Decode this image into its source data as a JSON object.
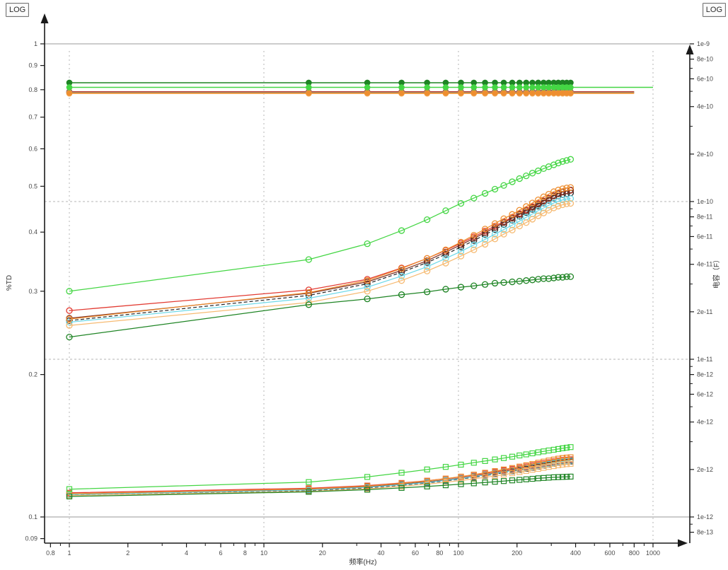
{
  "labels": {
    "log_left": "LOG",
    "log_right": "LOG",
    "x_title": "频率(Hz)",
    "y_left_title": "%TD",
    "y_right_title": "电容（F）"
  },
  "axes": {
    "x": {
      "scale": "log",
      "major_ticks": [
        {
          "f": 0.8,
          "label": "0.8"
        },
        {
          "f": 1,
          "label": "1"
        },
        {
          "f": 2,
          "label": "2"
        },
        {
          "f": 4,
          "label": "4"
        },
        {
          "f": 6,
          "label": "6"
        },
        {
          "f": 8,
          "label": "8"
        },
        {
          "f": 10,
          "label": "10"
        },
        {
          "f": 20,
          "label": "20"
        },
        {
          "f": 40,
          "label": "40"
        },
        {
          "f": 60,
          "label": "60"
        },
        {
          "f": 80,
          "label": "80"
        },
        {
          "f": 100,
          "label": "100"
        },
        {
          "f": 200,
          "label": "200"
        },
        {
          "f": 400,
          "label": "400"
        },
        {
          "f": 600,
          "label": "600"
        },
        {
          "f": 800,
          "label": "800"
        },
        {
          "f": 1000,
          "label": "1000"
        }
      ],
      "minor_ticks": [
        0.9,
        3,
        5,
        7,
        9,
        30,
        50,
        70,
        90,
        300,
        500,
        700,
        900
      ],
      "grid_dashed_at": [
        1,
        10,
        100,
        1000
      ]
    },
    "y_left": {
      "scale": "log",
      "ticks": [
        {
          "v": 1,
          "label": "1"
        },
        {
          "v": 0.9,
          "label": "0.9"
        },
        {
          "v": 0.8,
          "label": "0.8"
        },
        {
          "v": 0.7,
          "label": "0.7"
        },
        {
          "v": 0.6,
          "label": "0.6"
        },
        {
          "v": 0.5,
          "label": "0.5"
        },
        {
          "v": 0.4,
          "label": "0.4"
        },
        {
          "v": 0.3,
          "label": "0.3"
        },
        {
          "v": 0.2,
          "label": "0.2"
        },
        {
          "v": 0.1,
          "label": "0.1"
        },
        {
          "v": 0.09,
          "label": "0.09"
        }
      ],
      "grid_solid_at": [
        1,
        0.1
      ]
    },
    "y_right": {
      "scale": "log",
      "labeled_ticks": [
        {
          "c": 1e-09,
          "label": "1e-9"
        },
        {
          "c": 8e-10,
          "label": "8e-10"
        },
        {
          "c": 6e-10,
          "label": "6e-10"
        },
        {
          "c": 4e-10,
          "label": "4e-10"
        },
        {
          "c": 2e-10,
          "label": "2e-10"
        },
        {
          "c": 1e-10,
          "label": "1e-10"
        },
        {
          "c": 8e-11,
          "label": "8e-11"
        },
        {
          "c": 6e-11,
          "label": "6e-11"
        },
        {
          "c": 4e-11,
          "label": "4e-11"
        },
        {
          "c": 2e-11,
          "label": "2e-11"
        },
        {
          "c": 1e-11,
          "label": "1e-11"
        },
        {
          "c": 8e-12,
          "label": "8e-12"
        },
        {
          "c": 6e-12,
          "label": "6e-12"
        },
        {
          "c": 4e-12,
          "label": "4e-12"
        },
        {
          "c": 2e-12,
          "label": "2e-12"
        },
        {
          "c": 1e-12,
          "label": "1e-12"
        },
        {
          "c": 8e-13,
          "label": "8e-13"
        }
      ],
      "minor_ticks": [
        9e-10,
        7e-10,
        5e-10,
        3e-10,
        9e-11,
        7e-11,
        5e-11,
        3e-11,
        9e-12,
        7e-12,
        5e-12,
        3e-12,
        9e-13
      ],
      "grid_dashed_at": [
        1e-10,
        1e-11
      ]
    }
  },
  "chart_data": {
    "type": "line",
    "title": "",
    "xlabel": "频率(Hz)",
    "ylabel_left": "%TD",
    "ylabel_right": "电容（F）",
    "x_range": [
      0.8,
      1400
    ],
    "y_left_range": [
      0.09,
      1.1
    ],
    "y_right_range": [
      8e-13,
      1.5e-09
    ],
    "frequencies": [
      1,
      17,
      34,
      51,
      69,
      86,
      103,
      120,
      137,
      154,
      171,
      189,
      206,
      223,
      240,
      257,
      274,
      291,
      309,
      326,
      343,
      360,
      377
    ],
    "groups": {
      "capacitance": {
        "axis": "right",
        "marker": "filled-circle",
        "description": "flat curves near 5e-10 F"
      },
      "td_upper": {
        "axis": "left",
        "marker": "open-circle",
        "description": "rising curves 0.24-0.57"
      },
      "td_lower": {
        "axis": "left",
        "marker": "open-square",
        "description": "shallow curves 0.11-0.14"
      }
    },
    "series": [
      {
        "name": "red",
        "color": "#E23B32",
        "dash": null,
        "cap": 4.97e-10,
        "cap_line_end_hz": 800,
        "td_upper": [
          0.273,
          0.302,
          0.318,
          0.336,
          0.352,
          0.366,
          0.379,
          0.391,
          0.402,
          0.412,
          0.421,
          0.43,
          0.438,
          0.446,
          0.453,
          0.46,
          0.466,
          0.472,
          0.478,
          0.483,
          0.487,
          0.489,
          0.49
        ],
        "td_lower": [
          0.1125,
          0.115,
          0.1165,
          0.118,
          0.1193,
          0.1205,
          0.1216,
          0.1227,
          0.1237,
          0.1246,
          0.1255,
          0.1263,
          0.1271,
          0.1279,
          0.1286,
          0.1293,
          0.1299,
          0.1305,
          0.1311,
          0.1316,
          0.132,
          0.1322,
          0.1324
        ]
      },
      {
        "name": "black",
        "color": "#2B2B2B",
        "dash": "5,3",
        "cap": 4.92e-10,
        "cap_line_end_hz": 800,
        "td_upper": [
          0.26,
          0.294,
          0.311,
          0.329,
          0.345,
          0.359,
          0.372,
          0.384,
          0.395,
          0.405,
          0.415,
          0.424,
          0.432,
          0.44,
          0.447,
          0.454,
          0.461,
          0.467,
          0.472,
          0.477,
          0.48,
          0.482,
          0.484
        ],
        "td_lower": [
          0.1112,
          0.1137,
          0.1152,
          0.1167,
          0.118,
          0.1192,
          0.1203,
          0.1213,
          0.1223,
          0.1232,
          0.1241,
          0.1249,
          0.1257,
          0.1264,
          0.1271,
          0.1278,
          0.1284,
          0.129,
          0.1296,
          0.1301,
          0.1305,
          0.1308,
          0.131
        ]
      },
      {
        "name": "maroon",
        "color": "#803122",
        "dash": null,
        "cap": 4.94e-10,
        "cap_line_end_hz": 800,
        "td_upper": [
          0.263,
          0.297,
          0.314,
          0.332,
          0.348,
          0.363,
          0.376,
          0.388,
          0.399,
          0.409,
          0.419,
          0.428,
          0.436,
          0.444,
          0.451,
          0.458,
          0.465,
          0.471,
          0.477,
          0.482,
          0.486,
          0.489,
          0.491
        ],
        "td_lower": [
          0.1118,
          0.1143,
          0.1158,
          0.1173,
          0.1186,
          0.1198,
          0.1209,
          0.122,
          0.123,
          0.1239,
          0.1248,
          0.1256,
          0.1264,
          0.1272,
          0.1279,
          0.1286,
          0.1292,
          0.1298,
          0.1304,
          0.1309,
          0.1313,
          0.1316,
          0.1318
        ]
      },
      {
        "name": "cyan",
        "color": "#6FD9E8",
        "dash": null,
        "cap": 4.9e-10,
        "cap_line_end_hz": 800,
        "td_upper": [
          0.258,
          0.29,
          0.306,
          0.323,
          0.338,
          0.352,
          0.364,
          0.376,
          0.386,
          0.396,
          0.405,
          0.414,
          0.422,
          0.43,
          0.437,
          0.444,
          0.45,
          0.456,
          0.461,
          0.465,
          0.468,
          0.47,
          0.471
        ],
        "td_lower": [
          0.1115,
          0.114,
          0.1155,
          0.117,
          0.1183,
          0.1195,
          0.1206,
          0.1217,
          0.1227,
          0.1236,
          0.1245,
          0.1253,
          0.1261,
          0.1269,
          0.1276,
          0.1283,
          0.1289,
          0.1295,
          0.1301,
          0.1306,
          0.131,
          0.1313,
          0.1315
        ]
      },
      {
        "name": "orange-light",
        "color": "#F6BA72",
        "dash": null,
        "cap": 4.84e-10,
        "cap_line_end_hz": 800,
        "td_upper": [
          0.254,
          0.284,
          0.3,
          0.316,
          0.331,
          0.344,
          0.356,
          0.367,
          0.377,
          0.387,
          0.396,
          0.404,
          0.412,
          0.419,
          0.426,
          0.433,
          0.439,
          0.445,
          0.45,
          0.454,
          0.457,
          0.459,
          0.46
        ],
        "td_lower": [
          0.111,
          0.1133,
          0.1147,
          0.1161,
          0.1173,
          0.1184,
          0.1194,
          0.1204,
          0.1213,
          0.1221,
          0.1229,
          0.1237,
          0.1244,
          0.1251,
          0.1258,
          0.1264,
          0.127,
          0.1276,
          0.1281,
          0.1286,
          0.129,
          0.1293,
          0.1295
        ]
      },
      {
        "name": "orange",
        "color": "#EE8E30",
        "dash": null,
        "cap": 4.88e-10,
        "cap_line_end_hz": 800,
        "td_upper": [
          0.262,
          0.298,
          0.316,
          0.335,
          0.352,
          0.367,
          0.381,
          0.394,
          0.406,
          0.417,
          0.427,
          0.436,
          0.445,
          0.453,
          0.461,
          0.468,
          0.475,
          0.481,
          0.487,
          0.491,
          0.494,
          0.496,
          0.497
        ],
        "td_lower": [
          0.112,
          0.1146,
          0.1162,
          0.1178,
          0.1192,
          0.1205,
          0.1217,
          0.1229,
          0.124,
          0.125,
          0.126,
          0.1269,
          0.1278,
          0.1286,
          0.1294,
          0.1302,
          0.1309,
          0.1316,
          0.1322,
          0.1328,
          0.1332,
          0.1335,
          0.1337
        ]
      },
      {
        "name": "green-dark",
        "color": "#1E8424",
        "dash": null,
        "cap": 5.67e-10,
        "cap_line_end_hz": 377,
        "td_upper": [
          0.24,
          0.281,
          0.289,
          0.295,
          0.299,
          0.303,
          0.306,
          0.308,
          0.31,
          0.312,
          0.313,
          0.314,
          0.315,
          0.316,
          0.317,
          0.318,
          0.319,
          0.319,
          0.32,
          0.321,
          0.321,
          0.322,
          0.322
        ],
        "td_lower": [
          0.1105,
          0.113,
          0.1142,
          0.1152,
          0.116,
          0.1167,
          0.1173,
          0.1178,
          0.1183,
          0.1187,
          0.1191,
          0.1195,
          0.1198,
          0.1201,
          0.1204,
          0.1207,
          0.1209,
          0.1211,
          0.1213,
          0.1214,
          0.1215,
          0.1216,
          0.1217
        ]
      },
      {
        "name": "green-bright",
        "color": "#44D644",
        "dash": null,
        "cap": 5.3e-10,
        "cap_line_end_hz": 1000,
        "td_upper": [
          0.3,
          0.35,
          0.378,
          0.403,
          0.425,
          0.444,
          0.46,
          0.472,
          0.483,
          0.493,
          0.502,
          0.511,
          0.519,
          0.526,
          0.533,
          0.539,
          0.545,
          0.55,
          0.555,
          0.56,
          0.564,
          0.567,
          0.57
        ],
        "td_lower": [
          0.1145,
          0.1185,
          0.1215,
          0.124,
          0.126,
          0.1276,
          0.129,
          0.1302,
          0.1313,
          0.1323,
          0.1332,
          0.1341,
          0.1349,
          0.1356,
          0.1363,
          0.137,
          0.1376,
          0.1382,
          0.1387,
          0.1392,
          0.1397,
          0.1401,
          0.1405
        ]
      }
    ]
  }
}
